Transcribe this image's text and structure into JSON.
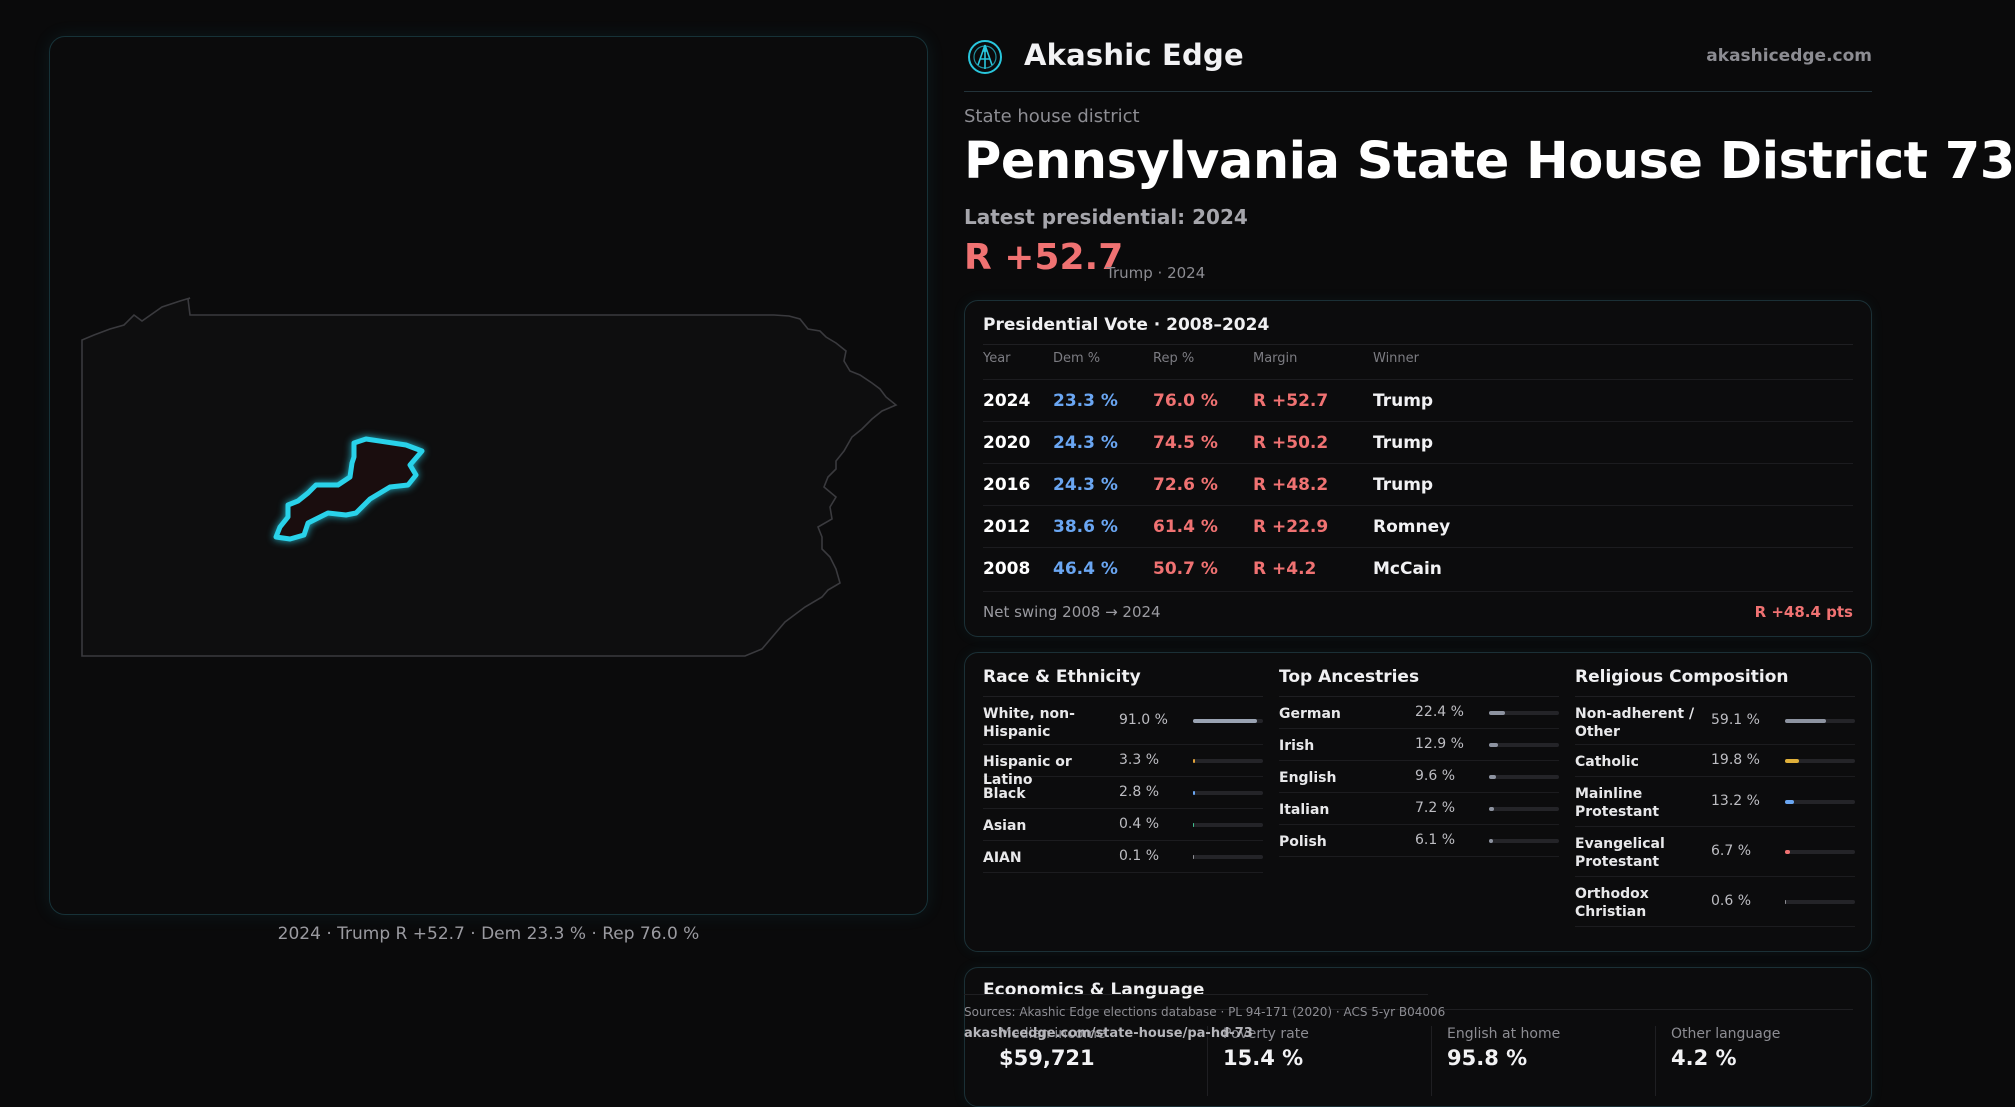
{
  "brand": {
    "name": "Akashic Edge",
    "url": "akashicedge.com"
  },
  "header": {
    "kicker": "State house district",
    "title": "Pennsylvania State House District 73",
    "latest_label": "Latest presidential: 2024",
    "margin": "R +52.7",
    "margin_sub": "Trump · 2024"
  },
  "map": {
    "caption": "2024 · Trump R +52.7 · Dem 23.3 % · Rep 76.0 %",
    "colors": {
      "state_outline": "#3a3a3e",
      "district_fill": "#1a0d0e",
      "district_stroke": "#29d2ea"
    }
  },
  "vote_table": {
    "title": "Presidential Vote · 2008–2024",
    "columns": [
      "Year",
      "Dem %",
      "Rep %",
      "Margin",
      "Winner"
    ],
    "rows": [
      {
        "year": "2024",
        "dem": "23.3 %",
        "rep": "76.0 %",
        "margin": "R +52.7",
        "winner": "Trump"
      },
      {
        "year": "2020",
        "dem": "24.3 %",
        "rep": "74.5 %",
        "margin": "R +50.2",
        "winner": "Trump"
      },
      {
        "year": "2016",
        "dem": "24.3 %",
        "rep": "72.6 %",
        "margin": "R +48.2",
        "winner": "Trump"
      },
      {
        "year": "2012",
        "dem": "38.6 %",
        "rep": "61.4 %",
        "margin": "R +22.9",
        "winner": "Romney"
      },
      {
        "year": "2008",
        "dem": "46.4 %",
        "rep": "50.7 %",
        "margin": "R +4.2",
        "winner": "McCain"
      }
    ],
    "swing_label": "Net swing 2008 → 2024",
    "swing_value": "R +48.4 pts",
    "colors": {
      "dem": "#6aa6f2",
      "rep": "#f07272"
    }
  },
  "demographics": {
    "race": {
      "title": "Race & Ethnicity",
      "items": [
        {
          "label": "White, non-Hispanic",
          "value": "91.0 %",
          "pct": 91.0,
          "color": "#9aa3b2"
        },
        {
          "label": "Hispanic or Latino",
          "value": "3.3 %",
          "pct": 3.3,
          "color": "#e0a23a"
        },
        {
          "label": "Black",
          "value": "2.8 %",
          "pct": 2.8,
          "color": "#6aa6f2"
        },
        {
          "label": "Asian",
          "value": "0.4 %",
          "pct": 0.4,
          "color": "#3fbf8f"
        },
        {
          "label": "AIAN",
          "value": "0.1 %",
          "pct": 0.1,
          "color": "#8d8d93"
        }
      ]
    },
    "ancestry": {
      "title": "Top Ancestries",
      "items": [
        {
          "label": "German",
          "value": "22.4 %",
          "pct": 22.4,
          "color": "#8d93a0"
        },
        {
          "label": "Irish",
          "value": "12.9 %",
          "pct": 12.9,
          "color": "#8d93a0"
        },
        {
          "label": "English",
          "value": "9.6 %",
          "pct": 9.6,
          "color": "#8d93a0"
        },
        {
          "label": "Italian",
          "value": "7.2 %",
          "pct": 7.2,
          "color": "#8d93a0"
        },
        {
          "label": "Polish",
          "value": "6.1 %",
          "pct": 6.1,
          "color": "#8d93a0"
        }
      ]
    },
    "religion": {
      "title": "Religious Composition",
      "items": [
        {
          "label": "Non-adherent / Other",
          "value": "59.1 %",
          "pct": 59.1,
          "color": "#8d93a0"
        },
        {
          "label": "Catholic",
          "value": "19.8 %",
          "pct": 19.8,
          "color": "#e0b03a"
        },
        {
          "label": "Mainline Protestant",
          "value": "13.2 %",
          "pct": 13.2,
          "color": "#6aa6f2"
        },
        {
          "label": "Evangelical Protestant",
          "value": "6.7 %",
          "pct": 6.7,
          "color": "#f07272"
        },
        {
          "label": "Orthodox Christian",
          "value": "0.6 %",
          "pct": 0.6,
          "color": "#8d8d93"
        }
      ]
    }
  },
  "economics": {
    "title": "Economics & Language",
    "stats": [
      {
        "label": "Median income",
        "value": "$59,721"
      },
      {
        "label": "Poverty rate",
        "value": "15.4 %"
      },
      {
        "label": "English at home",
        "value": "95.8 %"
      },
      {
        "label": "Other language",
        "value": "4.2 %"
      }
    ]
  },
  "footer": {
    "sources": "Sources: Akashic Edge elections database · PL 94-171 (2020) · ACS 5-yr B04006",
    "permalink": "akashicedge.com/state-house/pa-hd-73"
  }
}
